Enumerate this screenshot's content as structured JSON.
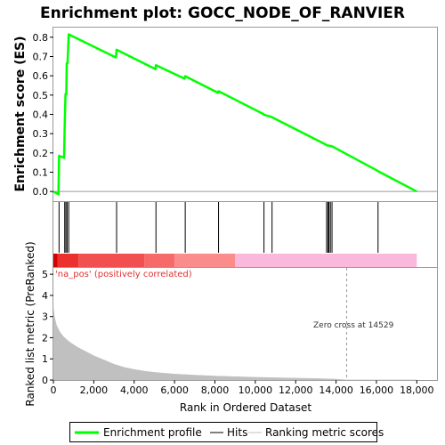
{
  "chart_data": [
    {
      "panel": "enrichment-profile",
      "type": "line",
      "title": "Enrichment plot: GOCC_NODE_OF_RANVIER",
      "ylabel": "Enrichment score (ES)",
      "ylim": [
        -0.05,
        0.85
      ],
      "xlim": [
        0,
        19000
      ],
      "yticks": [
        0.0,
        0.1,
        0.2,
        0.3,
        0.4,
        0.5,
        0.6,
        0.7,
        0.8
      ],
      "ytick_labels": [
        "0.0",
        "0.1",
        "0.2",
        "0.3",
        "0.4",
        "0.5",
        "0.6",
        "0.7",
        "0.8"
      ],
      "grid": false,
      "series": [
        {
          "name": "Enrichment profile",
          "color": "#00ff00",
          "x": [
            0,
            250,
            280,
            530,
            560,
            600,
            640,
            660,
            700,
            760,
            3100,
            3130,
            5050,
            5080,
            6500,
            6530,
            8150,
            8180,
            10400,
            10430,
            10800,
            10830,
            13500,
            13530,
            13620,
            13650,
            13800,
            13830,
            16050,
            16080,
            18000
          ],
          "y": [
            0.0,
            -0.015,
            0.185,
            0.175,
            0.345,
            0.505,
            0.505,
            0.665,
            0.665,
            0.815,
            0.695,
            0.735,
            0.635,
            0.655,
            0.585,
            0.598,
            0.512,
            0.52,
            0.402,
            0.398,
            0.387,
            0.385,
            0.243,
            0.24,
            0.238,
            0.238,
            0.235,
            0.233,
            0.108,
            0.105,
            0.0
          ]
        }
      ]
    },
    {
      "panel": "hits",
      "type": "scatter",
      "series": [
        {
          "name": "Hits",
          "color": "#000000",
          "x": [
            280,
            560,
            620,
            680,
            760,
            3130,
            5080,
            6530,
            8180,
            10430,
            10830,
            13530,
            13600,
            13650,
            13720,
            13800,
            16080
          ]
        }
      ]
    },
    {
      "panel": "ranked-list-metric",
      "type": "area",
      "ylabel": "Ranked list metric (PreRanked)",
      "xlabel": "Rank in Ordered Dataset",
      "xlim": [
        0,
        19000
      ],
      "ylim": [
        0,
        5.3
      ],
      "yticks": [
        0,
        1,
        2,
        3,
        4,
        5
      ],
      "ytick_labels": [
        "0",
        "1",
        "2",
        "3",
        "4",
        "5"
      ],
      "xticks": [
        0,
        2000,
        4000,
        6000,
        8000,
        10000,
        12000,
        14000,
        16000,
        18000
      ],
      "xtick_labels": [
        "0",
        "2,000",
        "4,000",
        "6,000",
        "8,000",
        "10,000",
        "12,000",
        "14,000",
        "16,000",
        "18,000"
      ],
      "annotations": [
        "'na_pos' (positively correlated)",
        "Zero cross at 14529"
      ],
      "zero_cross": 14529,
      "series": [
        {
          "name": "Ranking metric scores",
          "color": "#c0c0c0",
          "x": [
            0,
            50,
            150,
            300,
            500,
            800,
            1200,
            1600,
            2000,
            2500,
            3000,
            3500,
            4000,
            4500,
            5000,
            6000,
            7000,
            8000,
            9000,
            10000,
            11000,
            12000,
            13000,
            14000,
            14529,
            18000
          ],
          "y": [
            3.4,
            3.0,
            2.6,
            2.3,
            2.05,
            1.8,
            1.55,
            1.35,
            1.15,
            0.95,
            0.75,
            0.6,
            0.5,
            0.42,
            0.36,
            0.28,
            0.23,
            0.19,
            0.16,
            0.13,
            0.11,
            0.09,
            0.07,
            0.04,
            0.0,
            0.0
          ]
        }
      ]
    }
  ],
  "colorbar": [
    {
      "from": 0,
      "to": 200,
      "color": "#d40000"
    },
    {
      "from": 200,
      "to": 1250,
      "color": "#ec3030"
    },
    {
      "from": 1250,
      "to": 4500,
      "color": "#f25050"
    },
    {
      "from": 4500,
      "to": 6000,
      "color": "#f76a6a"
    },
    {
      "from": 6000,
      "to": 9000,
      "color": "#fa8c8c"
    },
    {
      "from": 9000,
      "to": 18000,
      "color": "#f9b8dc"
    }
  ],
  "legend": {
    "position": "bottom",
    "items": [
      {
        "label": "Enrichment profile",
        "color": "#00ff00",
        "kind": "thick-line"
      },
      {
        "label": "Hits",
        "color": "#000000",
        "kind": "line"
      },
      {
        "label": "Ranking metric scores",
        "color": "#c0c0c0",
        "kind": "line"
      }
    ]
  }
}
